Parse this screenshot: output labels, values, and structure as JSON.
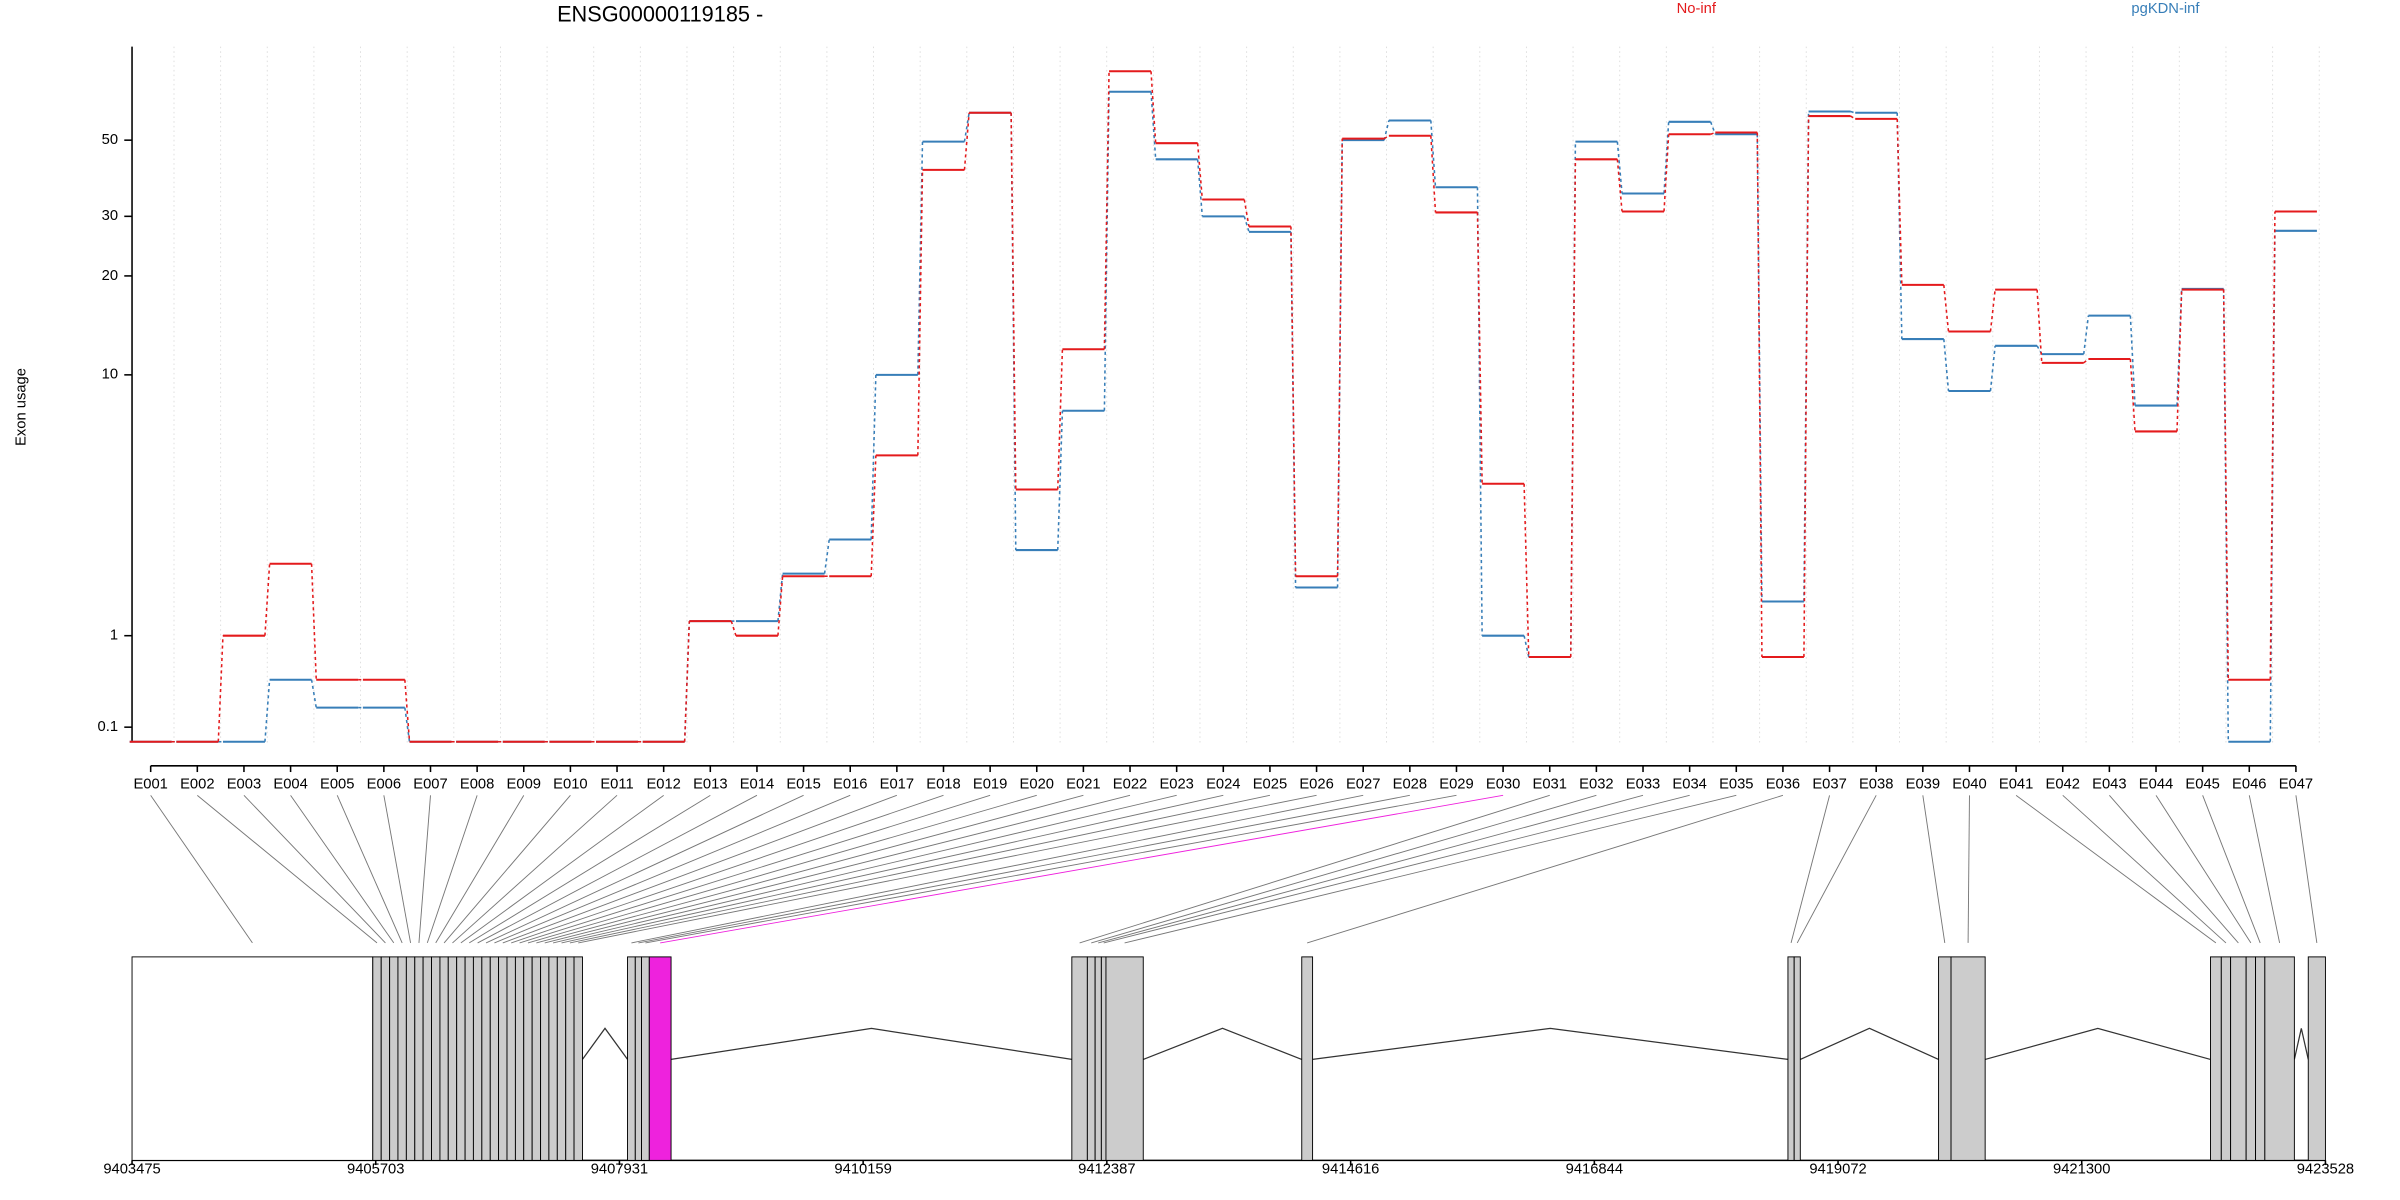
{
  "chart_data": {
    "type": "step-line",
    "title": "ENSG00000119185 -",
    "y_label": "Exon usage",
    "yscale": "log1p",
    "ylim": [
      0,
      93
    ],
    "yticks": [
      0.1,
      1,
      10,
      20,
      30,
      50
    ],
    "grid": true,
    "legend": "top",
    "categories": [
      "E001",
      "E002",
      "E003",
      "E004",
      "E005",
      "E006",
      "E007",
      "E008",
      "E009",
      "E010",
      "E011",
      "E012",
      "E013",
      "E014",
      "E015",
      "E016",
      "E017",
      "E018",
      "E019",
      "E020",
      "E021",
      "E022",
      "E023",
      "E024",
      "E025",
      "E026",
      "E027",
      "E028",
      "E029",
      "E030",
      "E031",
      "E032",
      "E033",
      "E034",
      "E035",
      "E036",
      "E037",
      "E038",
      "E039",
      "E040",
      "E041",
      "E042",
      "E043",
      "E044",
      "E045",
      "E046",
      "E047"
    ],
    "series": [
      {
        "name": "No-inf",
        "color": "#e41a1c",
        "values": [
          0,
          0,
          1,
          2.2,
          0.5,
          0.5,
          0,
          0,
          0,
          0,
          0,
          0,
          1.2,
          1,
          1.95,
          1.95,
          5.5,
          41,
          60,
          4.2,
          12,
          79,
          49,
          33.6,
          28,
          1.95,
          50.5,
          51.5,
          30.8,
          4.4,
          0.74,
          44,
          31,
          52,
          52.6,
          0.74,
          58.7,
          57.6,
          18.8,
          13.6,
          18.2,
          10.9,
          11.2,
          6.6,
          18.2,
          0.5,
          31
        ]
      },
      {
        "name": "pgKDN-inf",
        "color": "#377eb8",
        "values": [
          0,
          0,
          0,
          0.5,
          0.25,
          0.25,
          0,
          0,
          0,
          0,
          0,
          0,
          1.2,
          1.2,
          2,
          2.75,
          10,
          49.5,
          60,
          2.5,
          7.7,
          69,
          44,
          30,
          27,
          1.74,
          50,
          57,
          36.5,
          1,
          0.74,
          49.5,
          35,
          56.5,
          52,
          1.5,
          60.5,
          60,
          12.9,
          8.9,
          12.3,
          11.6,
          15.2,
          8,
          18.3,
          0,
          27.2
        ]
      }
    ],
    "gene_model": {
      "xlim": [
        9403475,
        9423528
      ],
      "xticks": [
        9403475,
        9405703,
        9407931,
        9410159,
        9412387,
        9414616,
        9416844,
        9419072,
        9421300,
        9423528
      ],
      "fill": "#cccccc",
      "unfilled": [
        0
      ],
      "highlight": 29,
      "highlight_color": "#ee22dd",
      "exons": [
        [
          9403475,
          9405676
        ],
        [
          9405676,
          9405753
        ],
        [
          9405753,
          9405830
        ],
        [
          9405830,
          9405906
        ],
        [
          9405906,
          9405983
        ],
        [
          9405983,
          9406060
        ],
        [
          9406060,
          9406136
        ],
        [
          9406136,
          9406213
        ],
        [
          9406213,
          9406290
        ],
        [
          9406290,
          9406366
        ],
        [
          9406366,
          9406443
        ],
        [
          9406443,
          9406520
        ],
        [
          9406520,
          9406596
        ],
        [
          9406596,
          9406673
        ],
        [
          9406673,
          9406750
        ],
        [
          9406750,
          9406826
        ],
        [
          9406826,
          9406903
        ],
        [
          9406903,
          9406980
        ],
        [
          9406980,
          9407056
        ],
        [
          9407056,
          9407133
        ],
        [
          9407133,
          9407210
        ],
        [
          9407210,
          9407286
        ],
        [
          9407286,
          9407363
        ],
        [
          9407363,
          9407440
        ],
        [
          9407440,
          9407516
        ],
        [
          9407516,
          9407593
        ],
        [
          9408005,
          9408076
        ],
        [
          9408076,
          9408133
        ],
        [
          9408133,
          9408204
        ],
        [
          9408204,
          9408403
        ],
        [
          9412067,
          9412209
        ],
        [
          9412209,
          9412280
        ],
        [
          9412280,
          9412337
        ],
        [
          9412337,
          9412379
        ],
        [
          9412379,
          9412720
        ],
        [
          9414169,
          9414268
        ],
        [
          9418614,
          9418671
        ],
        [
          9418671,
          9418727
        ],
        [
          9419991,
          9420105
        ],
        [
          9420105,
          9420417
        ],
        [
          9422477,
          9422576
        ],
        [
          9422576,
          9422661
        ],
        [
          9422661,
          9422803
        ],
        [
          9422803,
          9422889
        ],
        [
          9422889,
          9422974
        ],
        [
          9422974,
          9423244
        ],
        [
          9423371,
          9423528
        ]
      ]
    }
  }
}
